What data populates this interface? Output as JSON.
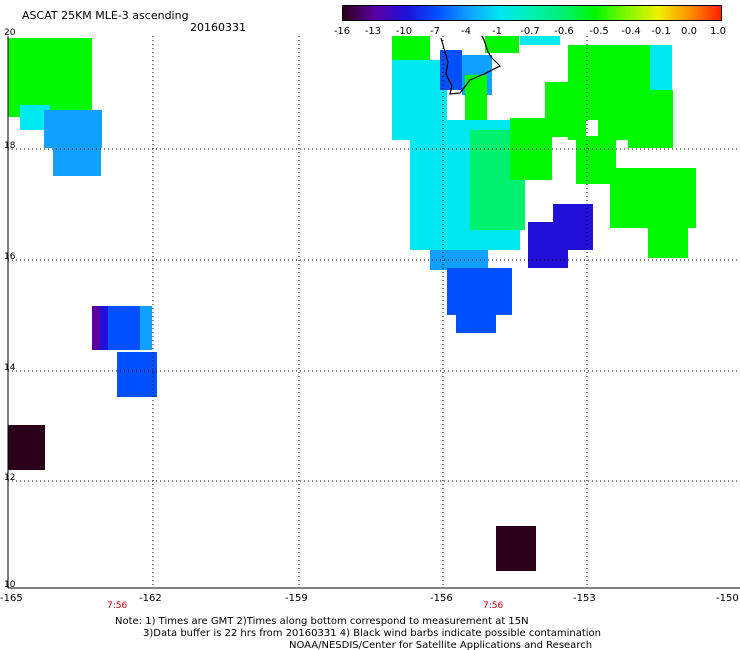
{
  "title": "ASCAT 25KM MLE-3 ascending",
  "date": "20160331",
  "colorbar": {
    "ticks": [
      "-16",
      "-13",
      "-10",
      "-7",
      "-4",
      "-1",
      "-0.7",
      "-0.6",
      "-0.5",
      "-0.4",
      "-0.1",
      "0.0",
      "1.0"
    ],
    "colors": [
      "#2a0018",
      "#5a00a0",
      "#2010d8",
      "#0050ff",
      "#10a0ff",
      "#00e8f0",
      "#00f0b0",
      "#00f070",
      "#00f800",
      "#80f800",
      "#f0f000",
      "#ff9000",
      "#ff2000"
    ]
  },
  "y_axis": {
    "lat_range": [
      10,
      20
    ],
    "labels": [
      "20",
      "18",
      "16",
      "14",
      "12",
      "10"
    ]
  },
  "x_axis": {
    "lon_range": [
      -165,
      -150
    ],
    "labels": [
      "-165",
      "-162",
      "-159",
      "-156",
      "-153",
      "-150"
    ]
  },
  "time_labels": [
    "7:56",
    "7:56"
  ],
  "notes": [
    "Note: 1) Times are GMT 2)Times along bottom correspond to measurement at 15N",
    "3)Data buffer is 22 hrs from 20160331 4) Black wind barbs indicate possible contamination",
    "NOAA/NESDIS/Center for Satellite Applications and Research"
  ]
}
